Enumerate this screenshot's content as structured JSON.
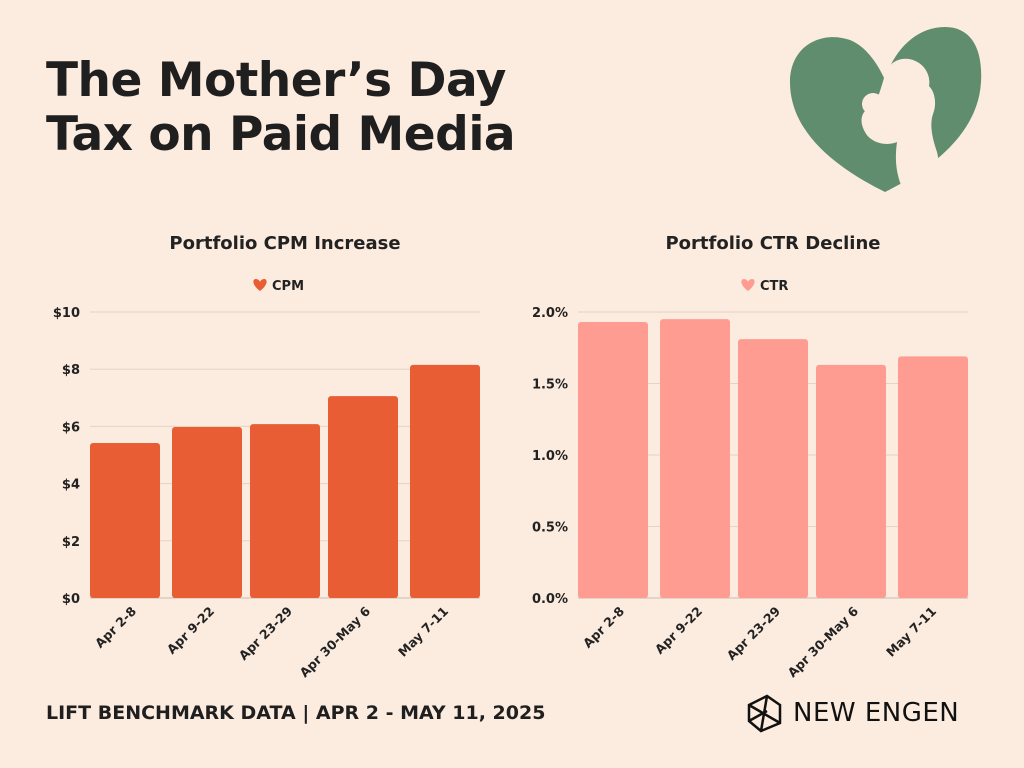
{
  "title": {
    "line1": "The  Mother’s Day",
    "line2": "Tax on Paid Media"
  },
  "footer": "LIFT BENCHMARK DATA | APR 2 - MAY 11, 2025",
  "brand": "NEW ENGEN",
  "colors": {
    "background": "#fcebdf",
    "cpm": "#e85d34",
    "ctr": "#fe9c92",
    "heart": "#5f8d6e"
  },
  "chart_data": [
    {
      "type": "bar",
      "title": "Portfolio CPM Increase",
      "legend": {
        "label": "CPM",
        "placement": "top-center",
        "icon": "heart-icon"
      },
      "categories": [
        "Apr 2-8",
        "Apr 9-22",
        "Apr 23-29",
        "Apr 30-May 6",
        "May 7-11"
      ],
      "values": [
        5.42,
        5.98,
        6.08,
        7.06,
        8.15
      ],
      "ylim": [
        0,
        10
      ],
      "yticks": [
        0,
        2,
        4,
        6,
        8,
        10
      ],
      "ytick_labels": [
        "$0",
        "$2",
        "$4",
        "$6",
        "$8",
        "$10"
      ],
      "grid": true,
      "color": "#e85d34"
    },
    {
      "type": "bar",
      "title": "Portfolio CTR Decline",
      "legend": {
        "label": "CTR",
        "placement": "top-center",
        "icon": "heart-icon"
      },
      "categories": [
        "Apr 2-8",
        "Apr 9-22",
        "Apr 23-29",
        "Apr 30-May 6",
        "May 7-11"
      ],
      "values": [
        1.93,
        1.95,
        1.81,
        1.63,
        1.69
      ],
      "ylim": [
        0,
        2
      ],
      "yticks": [
        0,
        0.5,
        1,
        1.5,
        2
      ],
      "ytick_labels": [
        "0.0%",
        "0.5%",
        "1.0%",
        "1.5%",
        "2.0%"
      ],
      "grid": true,
      "color": "#fe9c92"
    }
  ]
}
